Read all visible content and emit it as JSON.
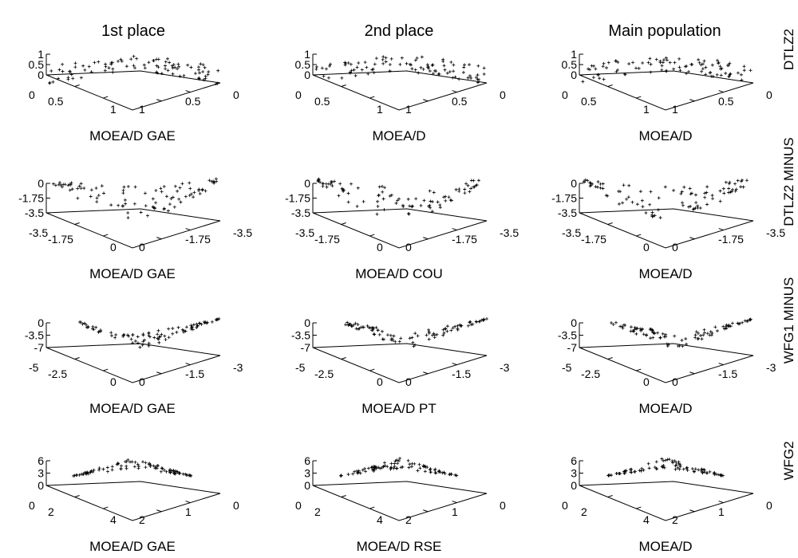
{
  "columns": [
    "1st place",
    "2nd place",
    "Main population"
  ],
  "rows": [
    "DTLZ2",
    "DTLZ2 MINUS",
    "WFG1 MINUS",
    "WFG2"
  ],
  "chart_data": [
    {
      "type": "scatter",
      "row": "DTLZ2",
      "shape": "sphere",
      "z_ticks": [
        "1",
        "0.5",
        "0"
      ],
      "left_ticks": [
        "0",
        "0.5",
        "1"
      ],
      "right_ticks": [
        "1",
        "0.5",
        "0"
      ],
      "panels": [
        {
          "column": "1st place",
          "algorithm": "MOEA/D GAE"
        },
        {
          "column": "2nd place",
          "algorithm": "MOEA/D"
        },
        {
          "column": "Main population",
          "algorithm": "MOEA/D"
        }
      ]
    },
    {
      "type": "scatter",
      "row": "DTLZ2 MINUS",
      "shape": "bowl",
      "z_ticks": [
        "0",
        "-1.75",
        "-3.5"
      ],
      "left_ticks": [
        "-3.5",
        "-1.75",
        "0"
      ],
      "right_ticks": [
        "0",
        "-1.75",
        "-3.5"
      ],
      "panels": [
        {
          "column": "1st place",
          "algorithm": "MOEA/D GAE"
        },
        {
          "column": "2nd place",
          "algorithm": "MOEA/D COU"
        },
        {
          "column": "Main population",
          "algorithm": "MOEA/D"
        }
      ]
    },
    {
      "type": "scatter",
      "row": "WFG1 MINUS",
      "shape": "cone",
      "z_ticks": [
        "0",
        "-3.5",
        "-7"
      ],
      "left_ticks": [
        "-5",
        "-2.5",
        "0"
      ],
      "right_ticks": [
        "0",
        "-1.5",
        "-3"
      ],
      "panels": [
        {
          "column": "1st place",
          "algorithm": "MOEA/D GAE"
        },
        {
          "column": "2nd place",
          "algorithm": "MOEA/D PT"
        },
        {
          "column": "Main population",
          "algorithm": "MOEA/D"
        }
      ]
    },
    {
      "type": "scatter",
      "row": "WFG2",
      "shape": "peak",
      "z_ticks": [
        "6",
        "3",
        "0"
      ],
      "left_ticks": [
        "0",
        "2",
        "4"
      ],
      "right_ticks": [
        "2",
        "1",
        "0"
      ],
      "panels": [
        {
          "column": "1st place",
          "algorithm": "MOEA/D GAE"
        },
        {
          "column": "2nd place",
          "algorithm": "MOEA/D RSE"
        },
        {
          "column": "Main population",
          "algorithm": "MOEA/D"
        }
      ]
    }
  ]
}
